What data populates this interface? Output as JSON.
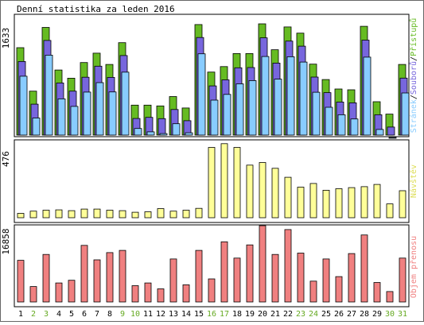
{
  "chart_data": [
    {
      "type": "bar",
      "title": "Denní statistika za leden 2016",
      "categories": [
        "1",
        "2",
        "3",
        "4",
        "5",
        "6",
        "7",
        "8",
        "9",
        "10",
        "11",
        "12",
        "13",
        "14",
        "15",
        "16",
        "17",
        "18",
        "19",
        "20",
        "21",
        "22",
        "23",
        "24",
        "25",
        "26",
        "27",
        "28",
        "29",
        "30",
        "31"
      ],
      "weekend_days": [
        "2",
        "3",
        "9",
        "10",
        "16",
        "17",
        "23",
        "24",
        "30",
        "31"
      ],
      "ylim": [
        0,
        1633
      ],
      "ytick_label": "1633",
      "ylabel_parts": [
        "Stránek",
        "Souborů",
        "Přístupů"
      ],
      "series": [
        {
          "name": "Přístupů",
          "color": "#66bb22",
          "values": [
            1283,
            645,
            1581,
            955,
            835,
            1065,
            1203,
            1037,
            1357,
            440,
            440,
            428,
            566,
            398,
            1623,
            925,
            1005,
            1197,
            1197,
            1633,
            1253,
            1587,
            1497,
            1042,
            815,
            676,
            665,
            1597,
            490,
            308,
            1037
          ]
        },
        {
          "name": "Souborů",
          "color": "#7766dd",
          "values": [
            1173,
            547,
            1483,
            858,
            738,
            943,
            1105,
            940,
            1261,
            337,
            354,
            335,
            469,
            305,
            1526,
            815,
            904,
            1081,
            1085,
            1521,
            1150,
            1473,
            1399,
            945,
            716,
            578,
            567,
            1487,
            392,
            211,
            930
          ]
        },
        {
          "name": "Stránek",
          "color": "#88ccff",
          "values": [
            1051,
            437,
            1360,
            718,
            608,
            818,
            957,
            820,
            1111,
            284,
            234,
            209,
            353,
            220,
            1380,
            700,
            784,
            939,
            987,
            1340,
            1008,
            1337,
            1258,
            815,
            595,
            485,
            423,
            1331,
            270,
            152,
            805
          ]
        }
      ]
    },
    {
      "type": "bar",
      "categories": [
        "1",
        "2",
        "3",
        "4",
        "5",
        "6",
        "7",
        "8",
        "9",
        "10",
        "11",
        "12",
        "13",
        "14",
        "15",
        "16",
        "17",
        "18",
        "19",
        "20",
        "21",
        "22",
        "23",
        "24",
        "25",
        "26",
        "27",
        "28",
        "29",
        "30",
        "31"
      ],
      "ylim": [
        0,
        476
      ],
      "ytick_label": "476",
      "ylabel": "Návštěv",
      "series": [
        {
          "name": "Návštěv",
          "color": "#ffff99",
          "values": [
            28,
            42,
            48,
            50,
            45,
            55,
            55,
            48,
            45,
            35,
            38,
            58,
            42,
            48,
            60,
            448,
            472,
            448,
            335,
            352,
            315,
            258,
            195,
            218,
            175,
            185,
            192,
            198,
            212,
            88,
            172
          ]
        }
      ]
    },
    {
      "type": "bar",
      "categories": [
        "1",
        "2",
        "3",
        "4",
        "5",
        "6",
        "7",
        "8",
        "9",
        "10",
        "11",
        "12",
        "13",
        "14",
        "15",
        "16",
        "17",
        "18",
        "19",
        "20",
        "21",
        "22",
        "23",
        "24",
        "25",
        "26",
        "27",
        "28",
        "29",
        "30",
        "31"
      ],
      "ylim": [
        0,
        16858
      ],
      "ytick_label": "16858",
      "ylabel": "Objem přenosu",
      "series": [
        {
          "name": "Objem přenosu",
          "color": "#f08080",
          "values": [
            9200,
            3400,
            10500,
            4200,
            4800,
            12500,
            9300,
            10900,
            11400,
            3600,
            4200,
            2900,
            9500,
            3800,
            11400,
            5100,
            13300,
            9700,
            12600,
            16858,
            10500,
            16000,
            10800,
            4600,
            9500,
            5600,
            10700,
            14800,
            4300,
            2300,
            9700
          ]
        }
      ]
    }
  ]
}
